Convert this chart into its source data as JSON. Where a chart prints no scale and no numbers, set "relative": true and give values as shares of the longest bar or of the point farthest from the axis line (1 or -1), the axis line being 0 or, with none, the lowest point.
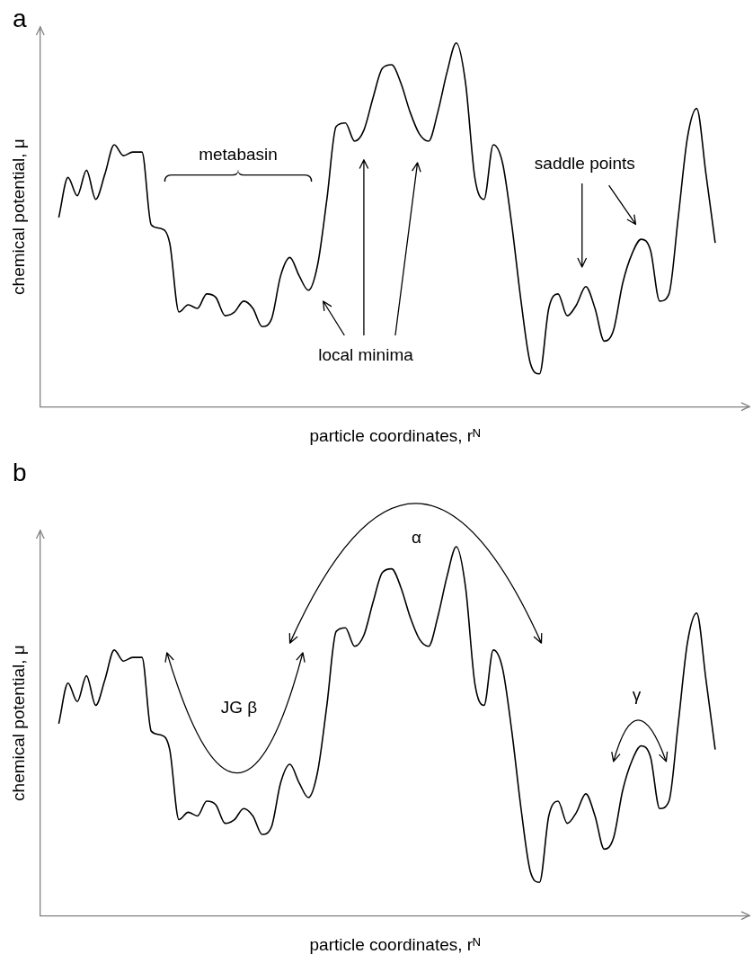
{
  "chart_data": [
    {
      "type": "line",
      "title": "a",
      "xlabel": "particle coordinates, rᴺ",
      "ylabel": "chemical potential, μ",
      "relative": true,
      "marker": "none",
      "color": "#000000",
      "categories": [
        null,
        null,
        null,
        null,
        null,
        null,
        null,
        null,
        null,
        null,
        null,
        null,
        null,
        null,
        null,
        null,
        null,
        null,
        null,
        null,
        null,
        null,
        null,
        null,
        null,
        null,
        null,
        null,
        null,
        null,
        null,
        null,
        null,
        null,
        null,
        null,
        null,
        null,
        null,
        null,
        null,
        null,
        null,
        null,
        null,
        null,
        null,
        null,
        null,
        null,
        null,
        null,
        null,
        null,
        null,
        null,
        null,
        null,
        null,
        null,
        null,
        null,
        null,
        null,
        null,
        null,
        null,
        null,
        null,
        null,
        null,
        null
      ],
      "values": [
        0.52,
        0.63,
        0.58,
        0.65,
        0.57,
        0.64,
        0.72,
        0.69,
        0.7,
        0.7,
        0.5,
        0.49,
        0.45,
        0.26,
        0.28,
        0.27,
        0.31,
        0.3,
        0.25,
        0.26,
        0.29,
        0.27,
        0.22,
        0.24,
        0.36,
        0.41,
        0.36,
        0.32,
        0.39,
        0.57,
        0.77,
        0.78,
        0.73,
        0.76,
        0.85,
        0.93,
        0.94,
        0.89,
        0.81,
        0.75,
        0.73,
        0.81,
        0.92,
        1.0,
        0.89,
        0.63,
        0.57,
        0.72,
        0.67,
        0.5,
        0.29,
        0.12,
        0.09,
        0.27,
        0.31,
        0.25,
        0.28,
        0.33,
        0.27,
        0.18,
        0.21,
        0.34,
        0.42,
        0.46,
        0.43,
        0.29,
        0.31,
        0.52,
        0.74,
        0.82,
        0.64,
        0.45
      ],
      "annotations": [
        "metabasin",
        "local minima",
        "saddle points"
      ]
    },
    {
      "type": "line",
      "title": "b",
      "xlabel": "particle coordinates, rᴺ",
      "ylabel": "chemical potential, μ",
      "relative": true,
      "marker": "none",
      "color": "#000000",
      "categories": [
        null,
        null,
        null,
        null,
        null,
        null,
        null,
        null,
        null,
        null,
        null,
        null,
        null,
        null,
        null,
        null,
        null,
        null,
        null,
        null,
        null,
        null,
        null,
        null,
        null,
        null,
        null,
        null,
        null,
        null,
        null,
        null,
        null,
        null,
        null,
        null,
        null,
        null,
        null,
        null,
        null,
        null,
        null,
        null,
        null,
        null,
        null,
        null,
        null,
        null,
        null,
        null,
        null,
        null,
        null,
        null,
        null,
        null,
        null,
        null,
        null,
        null,
        null,
        null,
        null,
        null,
        null,
        null,
        null,
        null,
        null,
        null
      ],
      "values": [
        0.52,
        0.63,
        0.58,
        0.65,
        0.57,
        0.64,
        0.72,
        0.69,
        0.7,
        0.7,
        0.5,
        0.49,
        0.45,
        0.26,
        0.28,
        0.27,
        0.31,
        0.3,
        0.25,
        0.26,
        0.29,
        0.27,
        0.22,
        0.24,
        0.36,
        0.41,
        0.36,
        0.32,
        0.39,
        0.57,
        0.77,
        0.78,
        0.73,
        0.76,
        0.85,
        0.93,
        0.94,
        0.89,
        0.81,
        0.75,
        0.73,
        0.81,
        0.92,
        1.0,
        0.89,
        0.63,
        0.57,
        0.72,
        0.67,
        0.5,
        0.29,
        0.12,
        0.09,
        0.27,
        0.31,
        0.25,
        0.28,
        0.33,
        0.27,
        0.18,
        0.21,
        0.34,
        0.42,
        0.46,
        0.43,
        0.29,
        0.31,
        0.52,
        0.74,
        0.82,
        0.64,
        0.45
      ],
      "annotations": [
        "α",
        "JG β",
        "γ"
      ]
    }
  ]
}
